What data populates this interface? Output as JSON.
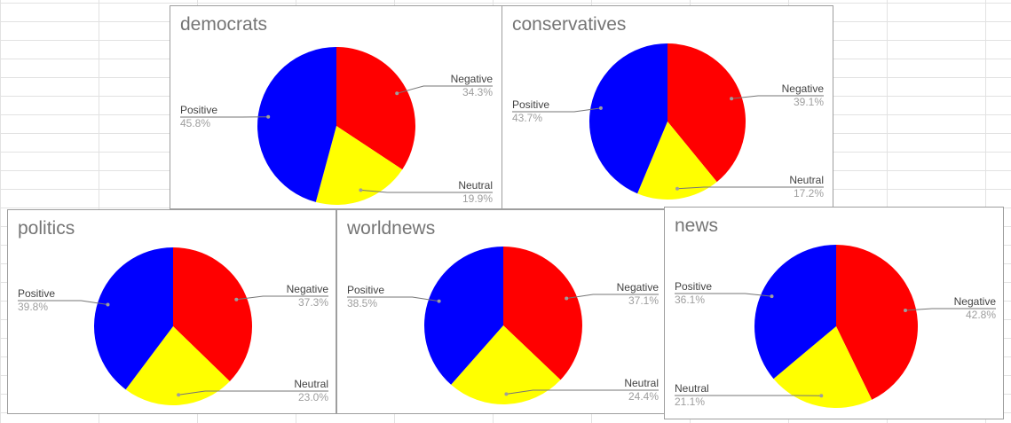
{
  "colors": {
    "Negative": "#ff0000",
    "Neutral": "#ffff00",
    "Positive": "#0000ff",
    "leader_line": "#757575"
  },
  "chart_data": [
    {
      "type": "pie",
      "title": "democrats",
      "slices": [
        {
          "label": "Negative",
          "value": 34.3,
          "value_label": "34.3%"
        },
        {
          "label": "Neutral",
          "value": 19.9,
          "value_label": "19.9%"
        },
        {
          "label": "Positive",
          "value": 45.8,
          "value_label": "45.8%"
        }
      ]
    },
    {
      "type": "pie",
      "title": "conservatives",
      "slices": [
        {
          "label": "Negative",
          "value": 39.1,
          "value_label": "39.1%"
        },
        {
          "label": "Neutral",
          "value": 17.2,
          "value_label": "17.2%"
        },
        {
          "label": "Positive",
          "value": 43.7,
          "value_label": "43.7%"
        }
      ]
    },
    {
      "type": "pie",
      "title": "politics",
      "slices": [
        {
          "label": "Negative",
          "value": 37.3,
          "value_label": "37.3%"
        },
        {
          "label": "Neutral",
          "value": 23.0,
          "value_label": "23.0%"
        },
        {
          "label": "Positive",
          "value": 39.8,
          "value_label": "39.8%"
        }
      ]
    },
    {
      "type": "pie",
      "title": "worldnews",
      "slices": [
        {
          "label": "Negative",
          "value": 37.1,
          "value_label": "37.1%"
        },
        {
          "label": "Neutral",
          "value": 24.4,
          "value_label": "24.4%"
        },
        {
          "label": "Positive",
          "value": 38.5,
          "value_label": "38.5%"
        }
      ]
    },
    {
      "type": "pie",
      "title": "news",
      "slices": [
        {
          "label": "Negative",
          "value": 42.8,
          "value_label": "42.8%"
        },
        {
          "label": "Neutral",
          "value": 21.1,
          "value_label": "21.1%"
        },
        {
          "label": "Positive",
          "value": 36.1,
          "value_label": "36.1%"
        }
      ]
    }
  ]
}
